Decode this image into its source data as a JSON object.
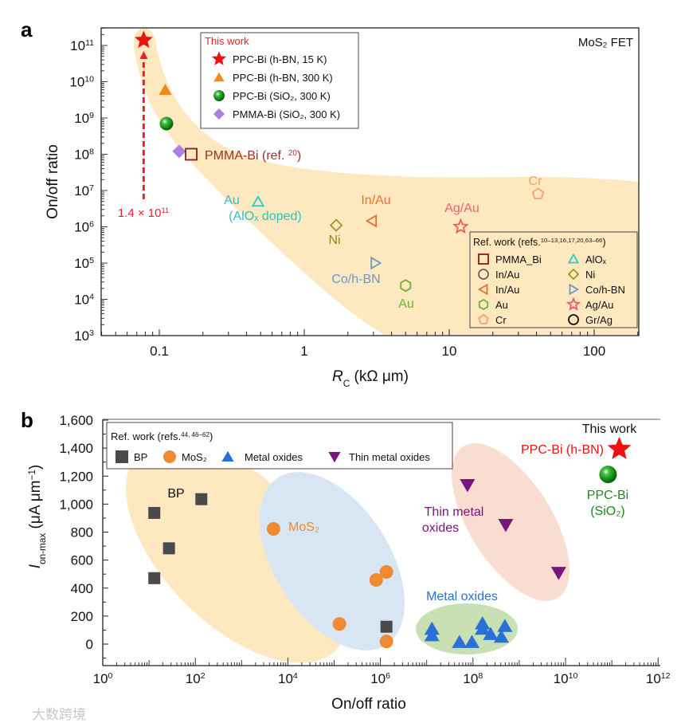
{
  "watermark": "大数跨境",
  "chart_data": [
    {
      "panel": "a",
      "type": "scatter",
      "title": "MoS₂ FET",
      "xlabel": {
        "symbol": "R",
        "subscript": "C",
        "unit": " (kΩ μm)"
      },
      "ylabel": "On/off ratio",
      "xscale": "log",
      "yscale": "log",
      "xlim": [
        0.04,
        200
      ],
      "ylim": [
        1000,
        300000000000
      ],
      "xticks": [
        {
          "v": 0.1,
          "label": "0.1"
        },
        {
          "v": 1,
          "label": "1"
        },
        {
          "v": 10,
          "label": "10"
        },
        {
          "v": 100,
          "label": "100"
        }
      ],
      "yticks_exponents": [
        3,
        4,
        5,
        6,
        7,
        8,
        9,
        10,
        11
      ],
      "annotation": {
        "text": "1.4 × 10",
        "sup": "11",
        "color": "#e8202a"
      },
      "legend_this_work": {
        "title": "This work",
        "position": "top-center",
        "entries": [
          "PPC-Bi (h-BN, 15 K)",
          "PPC-Bi (h-BN, 300 K)",
          "PPC-Bi (SiO₂, 300 K)",
          "PMMA-Bi (SiO₂, 300 K)"
        ]
      },
      "legend_ref": {
        "title": "Ref. work (refs.",
        "title_sup": "10–13,16,17,20,63–66",
        "title_end": ")",
        "position": "bottom-right"
      },
      "series": [
        {
          "name": "PPC-Bi (h-BN, 15 K)",
          "group": "this",
          "marker": "star",
          "color": "#ee1111",
          "filled": true,
          "points": [
            [
              0.078,
              140000000000
            ]
          ]
        },
        {
          "name": "PPC-Bi (h-BN, 300 K)",
          "group": "this",
          "marker": "tri-up",
          "color": "#f28a1a",
          "filled": true,
          "points": [
            [
              0.11,
              6000000000
            ]
          ]
        },
        {
          "name": "PPC-Bi (SiO₂, 300 K)",
          "group": "this",
          "marker": "sphere",
          "color": "#1a8a1a",
          "filled": true,
          "points": [
            [
              0.112,
              700000000
            ]
          ]
        },
        {
          "name": "PMMA-Bi (SiO₂, 300 K)",
          "group": "this",
          "marker": "diamond",
          "color": "#b07ee0",
          "filled": true,
          "points": [
            [
              0.137,
              120000000
            ]
          ]
        },
        {
          "name": "PMMA_Bi",
          "group": "ref",
          "marker": "square",
          "color": "#8b1a1a",
          "filled": false,
          "points": [
            [
              0.166,
              100000000
            ]
          ],
          "label": "PMMA-Bi (ref. ",
          "label_sup": "20",
          "label_end": ")",
          "label_color": "#9b3030"
        },
        {
          "name": "In/Au",
          "group": "ref",
          "marker": "circle",
          "color": "#7a5a5a",
          "filled": false,
          "points": []
        },
        {
          "name": "In/Au",
          "group": "ref",
          "marker": "tri-left",
          "color": "#e8702a",
          "filled": false,
          "points": [
            [
              2.93,
              1450000
            ]
          ],
          "label": "In/Au",
          "label_color": "#e8702a"
        },
        {
          "name": "Au",
          "group": "ref",
          "marker": "hexagon",
          "color": "#6ab42d",
          "filled": false,
          "points": [
            [
              5.0,
              24000
            ]
          ],
          "label": "Au",
          "label_color": "#6ab42d"
        },
        {
          "name": "Cr",
          "group": "ref",
          "marker": "pentagon",
          "color": "#f4a070",
          "filled": false,
          "points": [
            [
              41,
              8000000
            ]
          ],
          "label": "Cr",
          "label_color": "#f4a060"
        },
        {
          "name": "AlOₓ",
          "group": "ref",
          "marker": "tri-up",
          "color": "#30c8c8",
          "filled": false,
          "points": [
            [
              0.48,
              4900000
            ]
          ],
          "label": "Au",
          "label2": "(AlOₓ doped)",
          "label_color": "#30c0c0"
        },
        {
          "name": "Ni",
          "group": "ref",
          "marker": "diamond",
          "color": "#9a9a20",
          "filled": false,
          "points": [
            [
              1.66,
              1100000
            ]
          ],
          "label": "Ni",
          "label_color": "#8a8a20"
        },
        {
          "name": "Co/h-BN",
          "group": "ref",
          "marker": "tri-right",
          "color": "#6a9ac8",
          "filled": false,
          "points": [
            [
              3.1,
              100000
            ]
          ],
          "label": "Co/h-BN",
          "label_color": "#6a9ac8"
        },
        {
          "name": "Ag/Au",
          "group": "ref",
          "marker": "star",
          "color": "#f05565",
          "filled": false,
          "points": [
            [
              12,
              1000000
            ]
          ],
          "label": "Ag/Au",
          "label_color": "#f06070"
        },
        {
          "name": "Gr/Ag",
          "group": "ref",
          "marker": "circle",
          "color": "#111111",
          "filled": false,
          "points": []
        }
      ],
      "shaded_region_color": "#fde8bf"
    },
    {
      "panel": "b",
      "type": "scatter",
      "xlabel": "On/off ratio",
      "ylabel": {
        "symbol": "I",
        "subscript": "on-max",
        "unit": " (μA μm",
        "unit_sup": "−1",
        "unit_end": ")"
      },
      "xscale": "log",
      "yscale": "linear",
      "xlim": [
        1,
        1000000000000
      ],
      "ylim": [
        -167,
        1600
      ],
      "xticks_exponents": [
        0,
        2,
        4,
        6,
        8,
        10,
        12
      ],
      "yticks": [
        {
          "v": 0,
          "label": "0"
        },
        {
          "v": 200,
          "label": "200"
        },
        {
          "v": 400,
          "label": "400"
        },
        {
          "v": 600,
          "label": "600"
        },
        {
          "v": 800,
          "label": "800"
        },
        {
          "v": 1000,
          "label": "1,000"
        },
        {
          "v": 1200,
          "label": "1,200"
        },
        {
          "v": 1400,
          "label": "1,400"
        },
        {
          "v": 1600,
          "label": "1,600"
        }
      ],
      "legend": {
        "title": "Ref. work (refs.",
        "title_sup": "44, 46–62",
        "title_end": ")",
        "position": "top-left"
      },
      "this_work_label": "This work",
      "series": [
        {
          "name": "BP",
          "marker": "square",
          "color": "#4a4a4a",
          "points": [
            [
              13,
              937
            ],
            [
              135,
              1035
            ],
            [
              27,
              684
            ],
            [
              13,
              471
            ],
            [
              1350000,
              124
            ]
          ],
          "label": "BP",
          "label_color": "#111111"
        },
        {
          "name": "MoS₂",
          "marker": "circle",
          "color": "#f08a30",
          "points": [
            [
              4900,
              823
            ],
            [
              810000,
              458
            ],
            [
              1350000,
              515
            ],
            [
              130000,
              144
            ],
            [
              1350000,
              19
            ]
          ],
          "label": "MoS₂",
          "label_color": "#f08a30"
        },
        {
          "name": "Metal oxides",
          "marker": "tri-up",
          "color": "#2a70d8",
          "points": [
            [
              13000000,
              110
            ],
            [
              13000000,
              63
            ],
            [
              51000000,
              15
            ],
            [
              95000000,
              15
            ],
            [
              160000000,
              148
            ],
            [
              160000000,
              110
            ],
            [
              240000000,
              72
            ],
            [
              490000000,
              129
            ],
            [
              410000000,
              53
            ]
          ],
          "label": "Metal oxides",
          "label_color": "#2a70d0"
        },
        {
          "name": "Thin metal oxides",
          "marker": "tri-down",
          "color": "#7a1580",
          "points": [
            [
              76000000,
              1136
            ],
            [
              510000000,
              851
            ],
            [
              7100000000,
              509
            ]
          ],
          "label": "Thin metal",
          "label2": "oxides",
          "label_color": "#7a1580"
        },
        {
          "name": "PPC-Bi (h-BN)",
          "marker": "star",
          "color": "#ee1111",
          "points": [
            [
              145000000000,
              1393
            ]
          ],
          "label": "PPC-Bi (h-BN)",
          "label_color": "#ee1111",
          "this_work": true
        },
        {
          "name": "PPC-Bi (SiO₂)",
          "marker": "sphere",
          "color": "#1a8a1a",
          "points": [
            [
              83000000000,
              1212
            ]
          ],
          "label": "PPC-Bi",
          "label2": "(SiO₂)",
          "label_color": "#1a8a1a",
          "this_work": true
        }
      ],
      "regions": [
        {
          "name": "BP",
          "color": "#fde8bf"
        },
        {
          "name": "MoS₂",
          "color": "#d8e6f4"
        },
        {
          "name": "Thin metal oxides",
          "color": "#f9ddd0"
        },
        {
          "name": "Metal oxides",
          "color": "#c8e0b4"
        }
      ]
    }
  ]
}
